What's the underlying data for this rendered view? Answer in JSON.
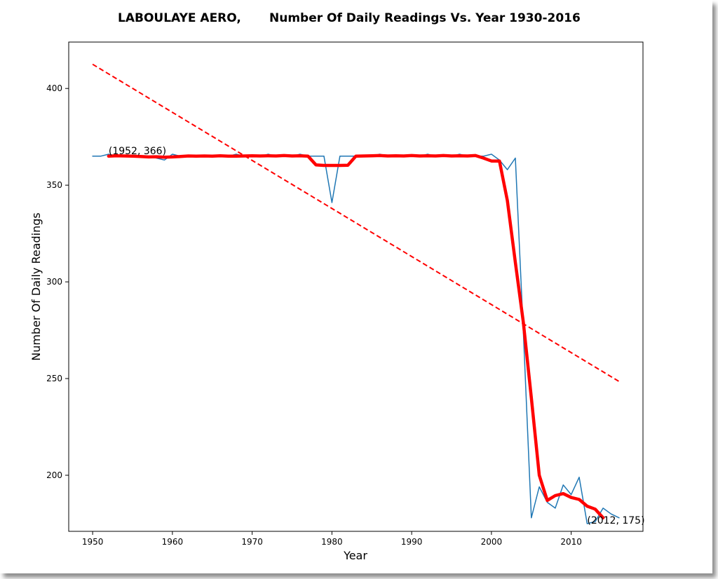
{
  "chart_data": {
    "type": "line",
    "title_station": "LABOULAYE AERO,",
    "title_main": "Number Of Daily Readings Vs. Year 1930-2016",
    "xlabel": "Year",
    "ylabel": "Number Of Daily Readings",
    "xlim": [
      1947,
      2019
    ],
    "ylim": [
      171,
      424
    ],
    "xticks": [
      1950,
      1960,
      1970,
      1980,
      1990,
      2000,
      2010
    ],
    "yticks": [
      200,
      250,
      300,
      350,
      400
    ],
    "grid": false,
    "series": [
      {
        "kind": "raw",
        "color": "#1f77b4",
        "x": [
          1950,
          1951,
          1952,
          1953,
          1954,
          1955,
          1956,
          1957,
          1958,
          1959,
          1960,
          1961,
          1962,
          1963,
          1964,
          1965,
          1966,
          1967,
          1968,
          1969,
          1970,
          1971,
          1972,
          1973,
          1974,
          1975,
          1976,
          1977,
          1978,
          1979,
          1980,
          1981,
          1982,
          1983,
          1984,
          1985,
          1986,
          1987,
          1988,
          1989,
          1990,
          1991,
          1992,
          1993,
          1994,
          1995,
          1996,
          1997,
          1998,
          1999,
          2000,
          2001,
          2002,
          2003,
          2004,
          2005,
          2006,
          2007,
          2008,
          2009,
          2010,
          2011,
          2012,
          2013,
          2014,
          2015,
          2016
        ],
        "y": [
          365,
          365,
          366,
          365,
          365,
          365,
          365,
          365,
          364,
          363,
          366,
          365,
          365,
          365,
          365,
          365,
          365,
          365,
          366,
          365,
          365,
          365,
          366,
          365,
          365,
          365,
          366,
          365,
          365,
          365,
          341,
          365,
          365,
          365,
          365,
          365,
          366,
          365,
          365,
          365,
          365,
          365,
          366,
          365,
          365,
          365,
          366,
          365,
          365,
          365,
          366,
          363,
          358,
          364,
          274,
          178,
          194,
          186,
          183,
          195,
          190,
          199,
          175,
          176,
          183,
          180,
          178
        ]
      },
      {
        "kind": "smoothed",
        "color": "#ff0000",
        "x": [
          1952,
          1953,
          1954,
          1955,
          1956,
          1957,
          1958,
          1959,
          1960,
          1961,
          1962,
          1963,
          1964,
          1965,
          1966,
          1967,
          1968,
          1969,
          1970,
          1971,
          1972,
          1973,
          1974,
          1975,
          1976,
          1977,
          1978,
          1979,
          1980,
          1981,
          1982,
          1983,
          1984,
          1985,
          1986,
          1987,
          1988,
          1989,
          1990,
          1991,
          1992,
          1993,
          1994,
          1995,
          1996,
          1997,
          1998,
          1999,
          2000,
          2001,
          2002,
          2003,
          2004,
          2005,
          2006,
          2007,
          2008,
          2009,
          2010,
          2011,
          2012,
          2013,
          2014
        ],
        "y": [
          365,
          365.2,
          365.1,
          365,
          364.8,
          364.6,
          364.7,
          364.5,
          364.6,
          364.8,
          365.1,
          365,
          365.1,
          365,
          365.2,
          365,
          365,
          365.1,
          365.2,
          365.1,
          365.2,
          365.1,
          365.3,
          365.1,
          365.2,
          365,
          360.5,
          360.2,
          360.2,
          360.2,
          360.3,
          365,
          365.1,
          365.2,
          365.3,
          365.1,
          365.2,
          365.1,
          365.3,
          365.1,
          365.2,
          365.1,
          365.3,
          365.1,
          365.2,
          365.1,
          365.3,
          364,
          362.5,
          362.5,
          342,
          310,
          279,
          240,
          200,
          187,
          189.5,
          190.5,
          188.5,
          187.5,
          184,
          182.5,
          178
        ]
      },
      {
        "kind": "trend",
        "color": "#ff0000",
        "dashed": true,
        "x": [
          1950,
          2016
        ],
        "y": [
          412.5,
          248.5
        ]
      }
    ],
    "annotations": [
      {
        "x": 1952,
        "y": 366,
        "text": "(1952, 366)"
      },
      {
        "x": 2012,
        "y": 175,
        "text": "(2012, 175)"
      }
    ]
  }
}
